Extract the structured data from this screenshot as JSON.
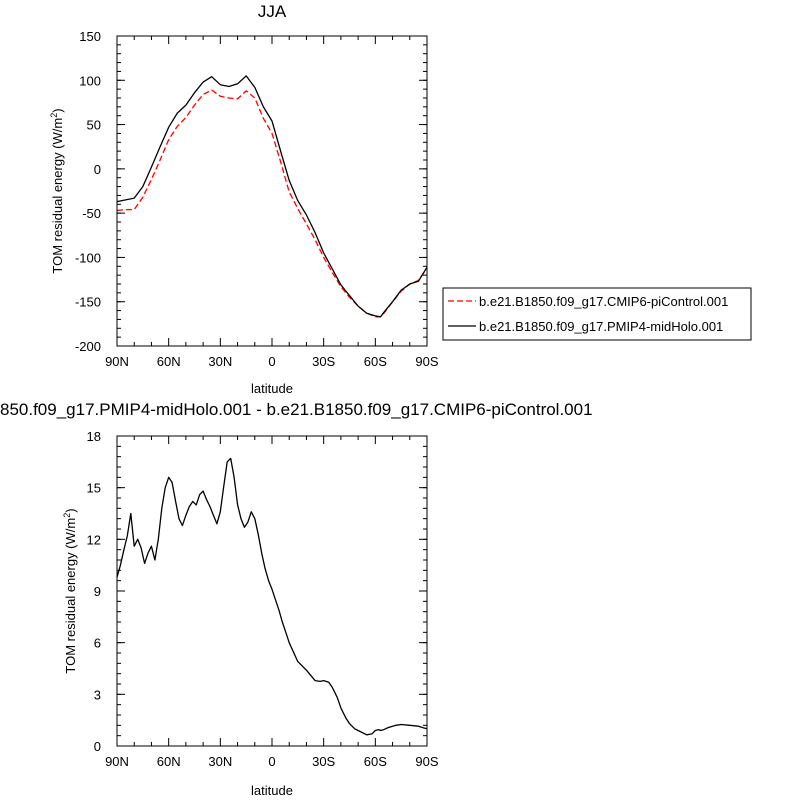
{
  "chart_data": [
    {
      "type": "line",
      "title": "JJA",
      "xlabel": "latitude",
      "ylabel": "TOM residual energy (W/m",
      "ylabel_sup": "2",
      "ylabel_close": ")",
      "xlim": [
        90,
        -90
      ],
      "ylim": [
        -200,
        150
      ],
      "xticks": [
        {
          "value": 90,
          "label": "90N"
        },
        {
          "value": 60,
          "label": "60N"
        },
        {
          "value": 30,
          "label": "30N"
        },
        {
          "value": 0,
          "label": "0"
        },
        {
          "value": -30,
          "label": "30S"
        },
        {
          "value": -60,
          "label": "60S"
        },
        {
          "value": -90,
          "label": "90S"
        }
      ],
      "yticks": [
        {
          "value": 150,
          "label": "150"
        },
        {
          "value": 100,
          "label": "100"
        },
        {
          "value": 50,
          "label": "50"
        },
        {
          "value": 0,
          "label": "0"
        },
        {
          "value": -50,
          "label": "-50"
        },
        {
          "value": -100,
          "label": "-100"
        },
        {
          "value": -150,
          "label": "-150"
        },
        {
          "value": -200,
          "label": "-200"
        }
      ],
      "legend_position": "right",
      "x": [
        90,
        85,
        80,
        75,
        70,
        65,
        60,
        55,
        50,
        45,
        40,
        35,
        30,
        25,
        20,
        15,
        10,
        5,
        0,
        -5,
        -10,
        -15,
        -20,
        -25,
        -30,
        -35,
        -40,
        -45,
        -50,
        -55,
        -60,
        -63,
        -65,
        -70,
        -75,
        -80,
        -85,
        -90
      ],
      "series": [
        {
          "name": "b.e21.B1850.f09_g17.CMIP6-piControl.001",
          "color": "#ff0000",
          "dash": "dashed",
          "values": [
            -47,
            -46,
            -46,
            -32,
            -12,
            10,
            33,
            48,
            58,
            72,
            84,
            89,
            82,
            80,
            79,
            88,
            80,
            57,
            40,
            8,
            -26,
            -45,
            -62,
            -80,
            -100,
            -117,
            -133,
            -145,
            -155,
            -163,
            -167,
            -167,
            -163,
            -150,
            -138,
            -130,
            -126,
            -112
          ]
        },
        {
          "name": "b.e21.B1850.f09_g17.PMIP4-midHolo.001",
          "color": "#000000",
          "dash": "solid",
          "values": [
            -37,
            -35,
            -33,
            -20,
            2,
            25,
            47,
            63,
            72,
            86,
            98,
            104,
            95,
            93,
            96,
            105,
            92,
            70,
            54,
            20,
            -13,
            -36,
            -52,
            -72,
            -95,
            -113,
            -131,
            -143,
            -155,
            -163,
            -166,
            -167,
            -162,
            -150,
            -137,
            -130,
            -127,
            -111
          ]
        }
      ]
    },
    {
      "type": "line",
      "title": "850.f09_g17.PMIP4-midHolo.001 - b.e21.B1850.f09_g17.CMIP6-piControl.001",
      "xlabel": "latitude",
      "ylabel": "TOM residual energy (W/m",
      "ylabel_sup": "2",
      "ylabel_close": ")",
      "xlim": [
        90,
        -90
      ],
      "ylim": [
        0,
        18
      ],
      "xticks": [
        {
          "value": 90,
          "label": "90N"
        },
        {
          "value": 60,
          "label": "60N"
        },
        {
          "value": 30,
          "label": "30N"
        },
        {
          "value": 0,
          "label": "0"
        },
        {
          "value": -30,
          "label": "30S"
        },
        {
          "value": -60,
          "label": "60S"
        },
        {
          "value": -90,
          "label": "90S"
        }
      ],
      "yticks": [
        {
          "value": 18,
          "label": "18"
        },
        {
          "value": 15,
          "label": "15"
        },
        {
          "value": 12,
          "label": "12"
        },
        {
          "value": 9,
          "label": "9"
        },
        {
          "value": 6,
          "label": "6"
        },
        {
          "value": 3,
          "label": "3"
        },
        {
          "value": 0,
          "label": "0"
        }
      ],
      "x": [
        90,
        88,
        86,
        84,
        82,
        80,
        78,
        76,
        74,
        72,
        70,
        68,
        66,
        64,
        62,
        60,
        58,
        56,
        54,
        52,
        50,
        48,
        46,
        44,
        42,
        40,
        38,
        36,
        34,
        32,
        30,
        28,
        26,
        24,
        22,
        20,
        18,
        16,
        14,
        12,
        10,
        8,
        6,
        4,
        2,
        0,
        -2,
        -4,
        -6,
        -8,
        -10,
        -15,
        -20,
        -25,
        -28,
        -30,
        -33,
        -35,
        -38,
        -40,
        -43,
        -45,
        -48,
        -50,
        -55,
        -58,
        -60,
        -62,
        -63,
        -65,
        -67,
        -70,
        -72,
        -75,
        -80,
        -85,
        -88,
        -90
      ],
      "series": [
        {
          "name": "",
          "color": "#000000",
          "dash": "solid",
          "values": [
            9.8,
            10.5,
            11.4,
            12.2,
            13.5,
            11.6,
            12.0,
            11.5,
            10.6,
            11.2,
            11.6,
            10.8,
            12.0,
            13.8,
            15.0,
            15.6,
            15.3,
            14.2,
            13.2,
            12.8,
            13.4,
            13.9,
            14.2,
            14.0,
            14.6,
            14.8,
            14.3,
            13.9,
            13.4,
            12.9,
            13.6,
            15.1,
            16.5,
            16.7,
            15.6,
            14.0,
            13.2,
            12.7,
            13.0,
            13.6,
            13.2,
            12.3,
            11.2,
            10.3,
            9.6,
            9.1,
            8.5,
            7.9,
            7.2,
            6.6,
            6.0,
            4.9,
            4.4,
            3.8,
            3.75,
            3.8,
            3.7,
            3.4,
            2.8,
            2.2,
            1.6,
            1.3,
            1.0,
            0.9,
            0.65,
            0.7,
            0.9,
            0.95,
            0.9,
            0.95,
            1.05,
            1.15,
            1.2,
            1.25,
            1.2,
            1.15,
            1.05,
            1.0
          ]
        }
      ]
    }
  ]
}
